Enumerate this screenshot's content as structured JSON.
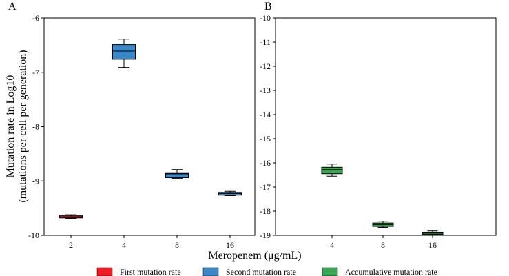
{
  "figure": {
    "ylabel_line1": "Mutation rate in Log10",
    "ylabel_line2": "(mutations per cell per generation)",
    "xlabel": "Meropenem (μg/mL)"
  },
  "legend": [
    {
      "label": "First mutation rate",
      "color": "#ee1c25"
    },
    {
      "label": "Second mutation rate",
      "color": "#3a87c8"
    },
    {
      "label": "Accumulative mutation rate",
      "color": "#3aa655"
    }
  ],
  "chart_data": [
    {
      "type": "box",
      "panel_label": "A",
      "categories": [
        "2",
        "4",
        "8",
        "16"
      ],
      "ylim": [
        -10,
        -6
      ],
      "yticks": [
        -10,
        -9,
        -8,
        -7,
        -6
      ],
      "boxes": [
        {
          "category": "2",
          "series": "First mutation rate",
          "color": "#ee1c25",
          "whisker_low": -9.69,
          "q1": -9.68,
          "median": -9.66,
          "q3": -9.64,
          "whisker_high": -9.62
        },
        {
          "category": "4",
          "series": "Second mutation rate",
          "color": "#3a87c8",
          "whisker_low": -6.91,
          "q1": -6.76,
          "median": -6.61,
          "q3": -6.49,
          "whisker_high": -6.39
        },
        {
          "category": "8",
          "series": "Second mutation rate",
          "color": "#3a87c8",
          "whisker_low": -8.95,
          "q1": -8.94,
          "median": -8.87,
          "q3": -8.86,
          "whisker_high": -8.79
        },
        {
          "category": "16",
          "series": "Second mutation rate",
          "color": "#3a87c8",
          "whisker_low": -9.27,
          "q1": -9.26,
          "median": -9.23,
          "q3": -9.21,
          "whisker_high": -9.19
        }
      ]
    },
    {
      "type": "box",
      "panel_label": "B",
      "categories": [
        "4",
        "8",
        "16"
      ],
      "ylim": [
        -19,
        -10
      ],
      "yticks": [
        -19,
        -18,
        -17,
        -16,
        -15,
        -14,
        -13,
        -12,
        -11,
        -10
      ],
      "boxes": [
        {
          "category": "4",
          "series": "Accumulative mutation rate",
          "color": "#3aa655",
          "whisker_low": -16.55,
          "q1": -16.45,
          "median": -16.28,
          "q3": -16.18,
          "whisker_high": -16.05
        },
        {
          "category": "8",
          "series": "Accumulative mutation rate",
          "color": "#3aa655",
          "whisker_low": -18.67,
          "q1": -18.63,
          "median": -18.56,
          "q3": -18.49,
          "whisker_high": -18.42
        },
        {
          "category": "16",
          "series": "Accumulative mutation rate",
          "color": "#3aa655",
          "whisker_low": -18.99,
          "q1": -18.96,
          "median": -18.91,
          "q3": -18.87,
          "whisker_high": -18.82
        }
      ]
    }
  ]
}
